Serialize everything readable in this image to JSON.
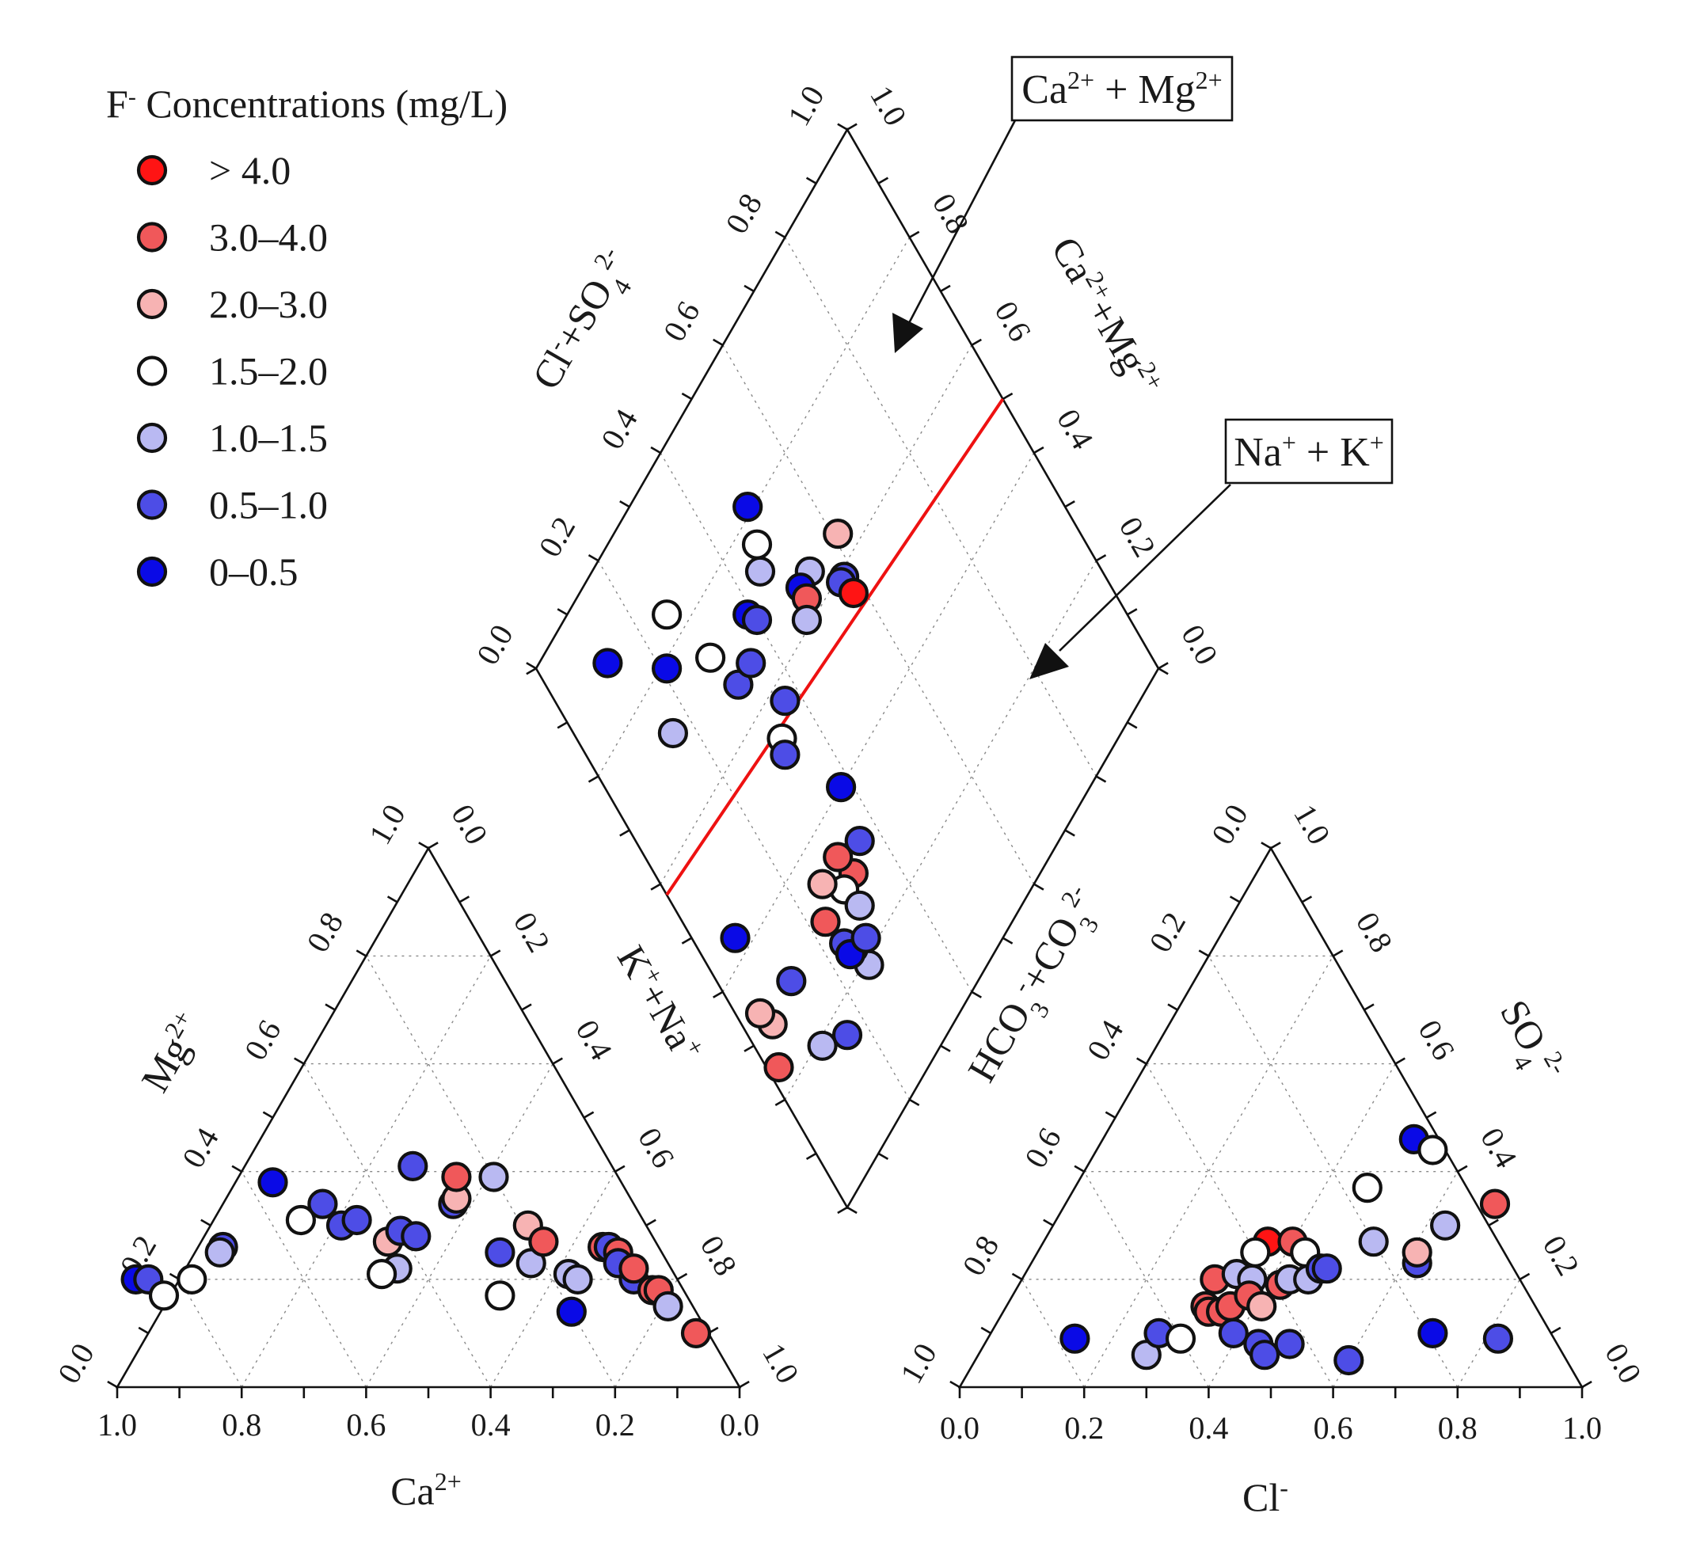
{
  "legend": {
    "title_main": "F",
    "title_sup": "-",
    "title_rest": " Concentrations (mg/L)",
    "items": [
      {
        "label": "> 4.0",
        "color": "#ff1414"
      },
      {
        "label": "3.0–4.0",
        "color": "#f0585a"
      },
      {
        "label": "2.0–3.0",
        "color": "#f7b3b3"
      },
      {
        "label": "1.5–2.0",
        "color": "#ffffff"
      },
      {
        "label": "1.0–1.5",
        "color": "#b9b9f2"
      },
      {
        "label": "0.5–1.0",
        "color": "#4d4de6"
      },
      {
        "label": "0–0.5",
        "color": "#0a0ae6"
      }
    ]
  },
  "callouts": {
    "camg": {
      "base": "Ca",
      "sup1": "2+",
      "mid": " + Mg",
      "sup2": "2+"
    },
    "nak": {
      "base": "Na",
      "sup1": "+",
      "mid": " + K",
      "sup2": "+"
    }
  },
  "ticks": [
    "0.0",
    "0.2",
    "0.4",
    "0.6",
    "0.8",
    "1.0"
  ],
  "ticks_reverse": [
    "1.0",
    "0.8",
    "0.6",
    "0.4",
    "0.2",
    "0.0"
  ],
  "axis_titles": {
    "ca": {
      "base": "Ca",
      "sup": "2+"
    },
    "mg": {
      "base": "Mg",
      "sup": "2+"
    },
    "kna": {
      "base": "K",
      "sup1": "+",
      "mid": "+Na",
      "sup2": "+"
    },
    "cl": {
      "base": "Cl",
      "sup": "-"
    },
    "hco3": {
      "base": "HCO",
      "sub1": "3",
      "sup1": "-",
      "mid": "+CO",
      "sub2": "3",
      "sup2": "2-"
    },
    "so4": {
      "base": "SO",
      "sub": "4",
      "sup": "2-"
    },
    "clso4": {
      "base": "Cl",
      "sup1": "-",
      "mid": "+SO",
      "sub": "4",
      "sup2": "2-"
    },
    "camg_d": {
      "base": "Ca",
      "sup1": "2+",
      "mid": "+Mg",
      "sup2": "2+"
    }
  },
  "chart_data": [
    {
      "type": "scatter",
      "name": "cation-ternary",
      "note": "x = Ca2+ fraction (axis reversed, 1.0 at left), y = Mg2+ fraction; K++Na+ = 1 - Ca - Mg",
      "points": [
        {
          "ca": 0.87,
          "mg": 0.2,
          "c": 6
        },
        {
          "ca": 0.85,
          "mg": 0.2,
          "c": 5
        },
        {
          "ca": 0.84,
          "mg": 0.17,
          "c": 3
        },
        {
          "ca": 0.78,
          "mg": 0.2,
          "c": 3
        },
        {
          "ca": 0.7,
          "mg": 0.26,
          "c": 5
        },
        {
          "ca": 0.71,
          "mg": 0.25,
          "c": 4
        },
        {
          "ca": 0.56,
          "mg": 0.38,
          "c": 6
        },
        {
          "ca": 0.55,
          "mg": 0.31,
          "c": 3
        },
        {
          "ca": 0.5,
          "mg": 0.34,
          "c": 5
        },
        {
          "ca": 0.49,
          "mg": 0.3,
          "c": 5
        },
        {
          "ca": 0.46,
          "mg": 0.31,
          "c": 5
        },
        {
          "ca": 0.43,
          "mg": 0.27,
          "c": 2
        },
        {
          "ca": 0.44,
          "mg": 0.22,
          "c": 4
        },
        {
          "ca": 0.47,
          "mg": 0.21,
          "c": 3
        },
        {
          "ca": 0.4,
          "mg": 0.29,
          "c": 5
        },
        {
          "ca": 0.38,
          "mg": 0.28,
          "c": 5
        },
        {
          "ca": 0.32,
          "mg": 0.41,
          "c": 5
        },
        {
          "ca": 0.29,
          "mg": 0.34,
          "c": 5
        },
        {
          "ca": 0.28,
          "mg": 0.35,
          "c": 2
        },
        {
          "ca": 0.26,
          "mg": 0.39,
          "c": 1
        },
        {
          "ca": 0.22,
          "mg": 0.23,
          "c": 4
        },
        {
          "ca": 0.3,
          "mg": 0.17,
          "c": 3
        },
        {
          "ca": 0.26,
          "mg": 0.25,
          "c": 5
        },
        {
          "ca": 0.2,
          "mg": 0.39,
          "c": 4
        },
        {
          "ca": 0.19,
          "mg": 0.3,
          "c": 2
        },
        {
          "ca": 0.18,
          "mg": 0.27,
          "c": 1
        },
        {
          "ca": 0.17,
          "mg": 0.21,
          "c": 4
        },
        {
          "ca": 0.16,
          "mg": 0.2,
          "c": 4
        },
        {
          "ca": 0.2,
          "mg": 0.14,
          "c": 6
        },
        {
          "ca": 0.09,
          "mg": 0.26,
          "c": 1
        },
        {
          "ca": 0.08,
          "mg": 0.26,
          "c": 5
        },
        {
          "ca": 0.07,
          "mg": 0.25,
          "c": 1
        },
        {
          "ca": 0.08,
          "mg": 0.23,
          "c": 5
        },
        {
          "ca": 0.07,
          "mg": 0.2,
          "c": 5
        },
        {
          "ca": 0.06,
          "mg": 0.22,
          "c": 1
        },
        {
          "ca": 0.05,
          "mg": 0.18,
          "c": 1
        },
        {
          "ca": 0.04,
          "mg": 0.18,
          "c": 1
        },
        {
          "ca": 0.04,
          "mg": 0.15,
          "c": 4
        },
        {
          "ca": 0.02,
          "mg": 0.1,
          "c": 1
        }
      ]
    },
    {
      "type": "scatter",
      "name": "anion-ternary",
      "note": "x = Cl- fraction, y = SO4 2- fraction; HCO3-+CO3 2- = 1 - Cl - SO4",
      "points": [
        {
          "cl": 0.14,
          "so4": 0.09,
          "c": 6
        },
        {
          "cl": 0.27,
          "so4": 0.06,
          "c": 4
        },
        {
          "cl": 0.27,
          "so4": 0.1,
          "c": 5
        },
        {
          "cl": 0.31,
          "so4": 0.09,
          "c": 3
        },
        {
          "cl": 0.31,
          "so4": 0.2,
          "c": 1
        },
        {
          "cl": 0.32,
          "so4": 0.15,
          "c": 1
        },
        {
          "cl": 0.33,
          "so4": 0.14,
          "c": 1
        },
        {
          "cl": 0.35,
          "so4": 0.14,
          "c": 1
        },
        {
          "cl": 0.36,
          "so4": 0.15,
          "c": 1
        },
        {
          "cl": 0.36,
          "so4": 0.27,
          "c": 0
        },
        {
          "cl": 0.34,
          "so4": 0.21,
          "c": 4
        },
        {
          "cl": 0.35,
          "so4": 0.25,
          "c": 3
        },
        {
          "cl": 0.37,
          "so4": 0.2,
          "c": 4
        },
        {
          "cl": 0.38,
          "so4": 0.17,
          "c": 1
        },
        {
          "cl": 0.39,
          "so4": 0.1,
          "c": 5
        },
        {
          "cl": 0.41,
          "so4": 0.15,
          "c": 2
        },
        {
          "cl": 0.4,
          "so4": 0.27,
          "c": 1
        },
        {
          "cl": 0.42,
          "so4": 0.19,
          "c": 1
        },
        {
          "cl": 0.43,
          "so4": 0.2,
          "c": 4
        },
        {
          "cl": 0.44,
          "so4": 0.08,
          "c": 5
        },
        {
          "cl": 0.43,
          "so4": 0.25,
          "c": 3
        },
        {
          "cl": 0.46,
          "so4": 0.06,
          "c": 5
        },
        {
          "cl": 0.46,
          "so4": 0.2,
          "c": 4
        },
        {
          "cl": 0.47,
          "so4": 0.22,
          "c": 5
        },
        {
          "cl": 0.48,
          "so4": 0.22,
          "c": 5
        },
        {
          "cl": 0.49,
          "so4": 0.08,
          "c": 5
        },
        {
          "cl": 0.47,
          "so4": 0.37,
          "c": 3
        },
        {
          "cl": 0.5,
          "so4": 0.46,
          "c": 6
        },
        {
          "cl": 0.54,
          "so4": 0.44,
          "c": 3
        },
        {
          "cl": 0.53,
          "so4": 0.27,
          "c": 4
        },
        {
          "cl": 0.6,
          "so4": 0.05,
          "c": 5
        },
        {
          "cl": 0.62,
          "so4": 0.23,
          "c": 5
        },
        {
          "cl": 0.61,
          "so4": 0.25,
          "c": 2
        },
        {
          "cl": 0.63,
          "so4": 0.3,
          "c": 4
        },
        {
          "cl": 0.69,
          "so4": 0.34,
          "c": 1
        },
        {
          "cl": 0.71,
          "so4": 0.1,
          "c": 6
        },
        {
          "cl": 0.82,
          "so4": 0.09,
          "c": 5
        }
      ]
    },
    {
      "type": "scatter",
      "name": "diamond",
      "note": "a = Cl-+SO4 2- fraction (left axis), b = Ca2++Mg2+ fraction (right axis)",
      "divider_line": {
        "b_bottom": 0.58,
        "b_top": 0.5
      },
      "points": [
        {
          "a": 0.12,
          "b": 0.89,
          "c": 6
        },
        {
          "a": 0.16,
          "b": 0.72,
          "c": 4
        },
        {
          "a": 0.21,
          "b": 0.79,
          "c": 6
        },
        {
          "a": 0.26,
          "b": 0.84,
          "c": 3
        },
        {
          "a": 0.29,
          "b": 0.73,
          "c": 3
        },
        {
          "a": 0.31,
          "b": 0.66,
          "c": 5
        },
        {
          "a": 0.35,
          "b": 0.66,
          "c": 5
        },
        {
          "a": 0.39,
          "b": 0.71,
          "c": 6
        },
        {
          "a": 0.4,
          "b": 0.69,
          "c": 5
        },
        {
          "a": 0.45,
          "b": 0.73,
          "c": 4
        },
        {
          "a": 0.47,
          "b": 0.76,
          "c": 3
        },
        {
          "a": 0.49,
          "b": 0.81,
          "c": 6
        },
        {
          "a": 0.53,
          "b": 0.65,
          "c": 4
        },
        {
          "a": 0.58,
          "b": 0.59,
          "c": 5
        },
        {
          "a": 0.61,
          "b": 0.64,
          "c": 2
        },
        {
          "a": 0.57,
          "b": 0.59,
          "c": 5
        },
        {
          "a": 0.58,
          "b": 0.56,
          "c": 0
        },
        {
          "a": 0.5,
          "b": 0.65,
          "c": 6
        },
        {
          "a": 0.5,
          "b": 0.63,
          "c": 1
        },
        {
          "a": 0.48,
          "b": 0.61,
          "c": 4
        },
        {
          "a": 0.37,
          "b": 0.57,
          "c": 5
        },
        {
          "a": 0.33,
          "b": 0.54,
          "c": 3
        },
        {
          "a": 0.32,
          "b": 0.52,
          "c": 5
        },
        {
          "a": 0.38,
          "b": 0.4,
          "c": 6
        },
        {
          "a": 0.36,
          "b": 0.32,
          "c": 5
        },
        {
          "a": 0.32,
          "b": 0.3,
          "c": 1
        },
        {
          "a": 0.31,
          "b": 0.34,
          "c": 1
        },
        {
          "a": 0.29,
          "b": 0.3,
          "c": 3
        },
        {
          "a": 0.26,
          "b": 0.34,
          "c": 2
        },
        {
          "a": 0.26,
          "b": 0.19,
          "c": 4
        },
        {
          "a": 0.25,
          "b": 0.23,
          "c": 4
        },
        {
          "a": 0.24,
          "b": 0.25,
          "c": 5
        },
        {
          "a": 0.24,
          "b": 0.23,
          "c": 6
        },
        {
          "a": 0.28,
          "b": 0.22,
          "c": 5
        },
        {
          "a": 0.3,
          "b": 0.26,
          "c": 4
        },
        {
          "a": 0.16,
          "b": 0.16,
          "c": 5
        },
        {
          "a": 0.11,
          "b": 0.19,
          "c": 4
        },
        {
          "a": 0.12,
          "b": 0.3,
          "c": 5
        },
        {
          "a": 0.05,
          "b": 0.29,
          "c": 2
        },
        {
          "a": 0.04,
          "b": 0.32,
          "c": 2
        },
        {
          "a": 0.02,
          "b": 0.24,
          "c": 1
        },
        {
          "a": 0.07,
          "b": 0.43,
          "c": 6
        },
        {
          "a": 0.23,
          "b": 0.3,
          "c": 1
        }
      ]
    }
  ]
}
